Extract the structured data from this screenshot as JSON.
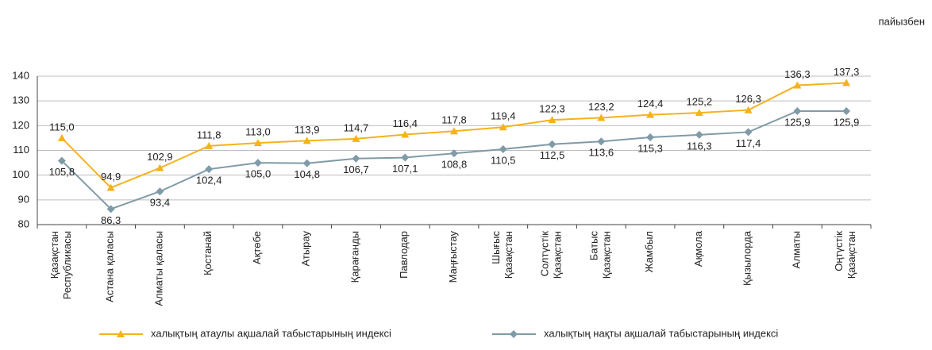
{
  "chart_data": {
    "type": "line",
    "unit_label": "пайызбен",
    "categories": [
      "Қазақстан\nРеспубликасы",
      "Астана қаласы",
      "Алматы қаласы",
      "Қостанай",
      "Ақтөбе",
      "Атырау",
      "Қарағанды",
      "Павлодар",
      "Маңғыстау",
      "Шығыс\nҚазақстан",
      "Солтүстік\nҚазақстан",
      "Батыс\nҚазақстан",
      "Жамбыл",
      "Ақмола",
      "Қызылорда",
      "Алматы",
      "Оңтүстік\nҚазақстан"
    ],
    "series": [
      {
        "name": "халықтың атаулы ақшалай табыстарының индексі",
        "color": "#f5b21b",
        "marker": "triangle",
        "values": [
          115.0,
          94.9,
          102.9,
          111.8,
          113.0,
          113.9,
          114.7,
          116.4,
          117.8,
          119.4,
          122.3,
          123.2,
          124.4,
          125.2,
          126.3,
          136.3,
          137.3
        ],
        "value_labels": [
          "115,0",
          "94,9",
          "102,9",
          "111,8",
          "113,0",
          "113,9",
          "114,7",
          "116,4",
          "117,8",
          "119,4",
          "122,3",
          "123,2",
          "124,4",
          "125,2",
          "126,3",
          "136,3",
          "137,3"
        ]
      },
      {
        "name": "халықтың нақты ақшалай табыстарының индексі",
        "color": "#7f9ba8",
        "marker": "diamond",
        "values": [
          105.8,
          86.3,
          93.4,
          102.4,
          105.0,
          104.8,
          106.7,
          107.1,
          108.8,
          110.5,
          112.5,
          113.6,
          115.3,
          116.3,
          117.4,
          125.9,
          125.9
        ],
        "value_labels": [
          "105,8",
          "86,3",
          "93,4",
          "102,4",
          "105,0",
          "104,8",
          "106,7",
          "107,1",
          "108,8",
          "110,5",
          "112,5",
          "113,6",
          "115,3",
          "116,3",
          "117,4",
          "125,9",
          "125,9"
        ]
      }
    ],
    "ylim": [
      80,
      140
    ],
    "yticks": [
      80,
      90,
      100,
      110,
      120,
      130,
      140
    ],
    "grid": true
  }
}
